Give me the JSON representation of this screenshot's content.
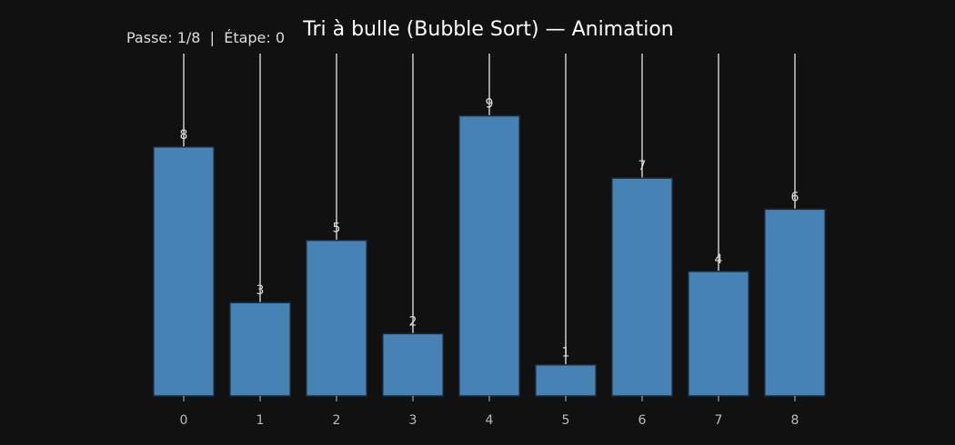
{
  "title": "Tri à bulle (Bubble Sort) — Animation",
  "status": {
    "pass_label": "Passe:",
    "pass_value": "1/8",
    "separator": "|",
    "step_label": "Étape:",
    "step_value": "0",
    "text": "Passe: 1/8  |  Étape: 0"
  },
  "colors": {
    "background": "#111111",
    "bar_fill": "#4682b4",
    "bar_edge": "#1f2a36",
    "marker_line": "#cccccc",
    "text": "#dddddd",
    "tick_text": "#bbbbbb"
  },
  "chart_data": {
    "type": "bar",
    "title": "Tri à bulle (Bubble Sort) — Animation",
    "xlabel": "",
    "ylabel": "",
    "categories": [
      "0",
      "1",
      "2",
      "3",
      "4",
      "5",
      "6",
      "7",
      "8"
    ],
    "values": [
      8,
      3,
      5,
      2,
      9,
      1,
      7,
      4,
      6
    ],
    "data_labels": [
      "8",
      "3",
      "5",
      "2",
      "9",
      "1",
      "7",
      "4",
      "6"
    ],
    "ylim": [
      0,
      11
    ],
    "grid": false,
    "legend": "none",
    "vertical_markers": true
  }
}
